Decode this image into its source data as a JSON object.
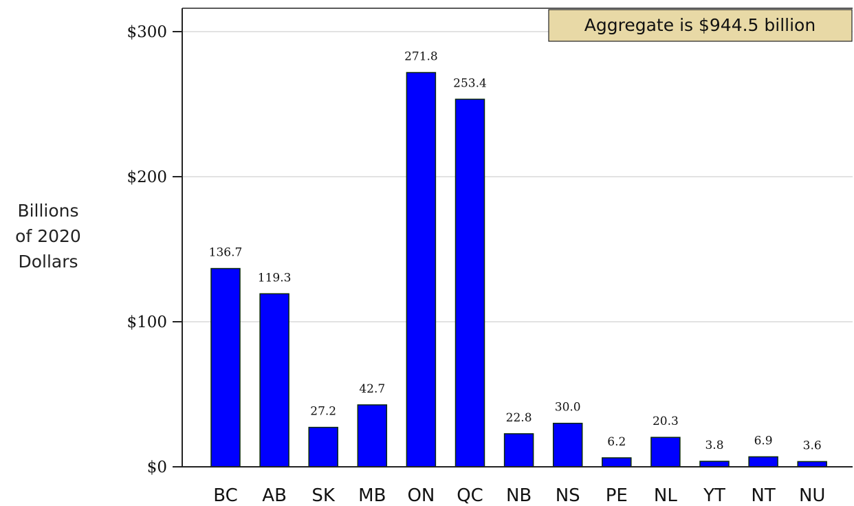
{
  "chart_data": {
    "type": "bar",
    "categories": [
      "BC",
      "AB",
      "SK",
      "MB",
      "ON",
      "QC",
      "NB",
      "NS",
      "PE",
      "NL",
      "YT",
      "NT",
      "NU"
    ],
    "values": [
      136.7,
      119.3,
      27.2,
      42.7,
      271.8,
      253.4,
      22.8,
      30.0,
      6.2,
      20.3,
      3.8,
      6.9,
      3.6
    ],
    "value_labels": [
      "136.7",
      "119.3",
      "27.2",
      "42.7",
      "271.8",
      "253.4",
      "22.8",
      "30.0",
      "6.2",
      "20.3",
      "3.8",
      "6.9",
      "3.6"
    ],
    "ylabel_lines": [
      "Billions",
      "of 2020",
      "Dollars"
    ],
    "yticks": [
      0,
      100,
      200,
      300
    ],
    "ytick_labels": [
      "$0",
      "$100",
      "$200",
      "$300"
    ],
    "ylim": [
      0,
      315
    ],
    "grid": true,
    "annotation": "Aggregate is $944.5 billion",
    "colors": {
      "bar_fill": "#0000ff",
      "bar_stroke": "#0a2a0a",
      "grid": "#e2e2e2",
      "annotation_fill": "#e8d9a6",
      "axis": "#222222"
    }
  }
}
